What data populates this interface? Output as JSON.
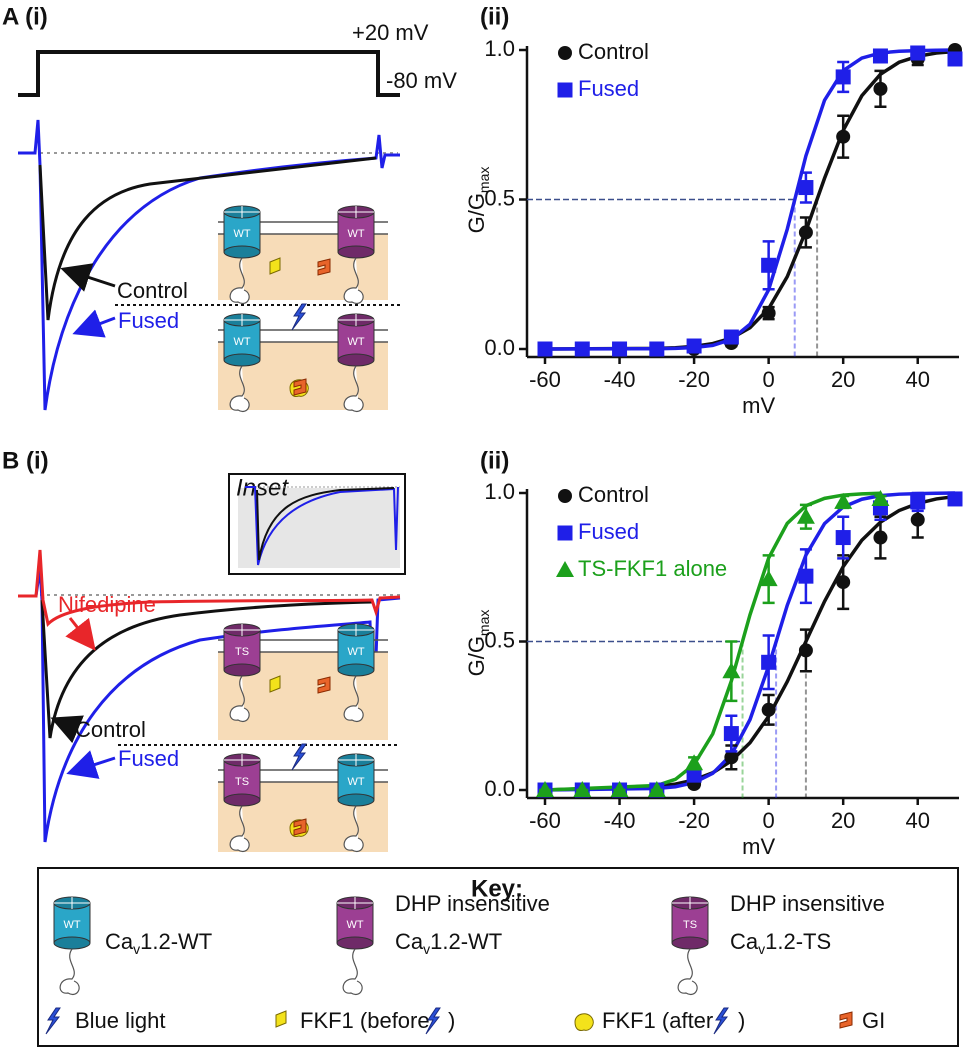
{
  "panel_labels": {
    "a_i": "A (i)",
    "a_ii": "(ii)",
    "b_i": "B (i)",
    "b_ii": "(ii)"
  },
  "voltage_protocol": {
    "high": "+20 mV",
    "low": "-80 mV"
  },
  "traces_a": {
    "control": "Control",
    "fused": "Fused"
  },
  "traces_b": {
    "nifedipine": "Nifedipine",
    "control": "Control",
    "fused": "Fused",
    "inset": "Inset"
  },
  "channel_labels": {
    "wt": "WT",
    "ts": "TS"
  },
  "chart_data": [
    {
      "type": "line",
      "ylabel": "G/G",
      "ylabel_sub": "max",
      "xlabel": "mV",
      "xlim": [
        -60,
        50
      ],
      "ylim": [
        0,
        1
      ],
      "xticks": [
        -60,
        -40,
        -20,
        0,
        20,
        40
      ],
      "yticks": [
        {
          "value": 0,
          "label": "0.0"
        },
        {
          "value": 0.5,
          "label": "0.5"
        },
        {
          "value": 1,
          "label": "1.0"
        }
      ],
      "legend": "upper left",
      "reference_y": 0.5,
      "series": [
        {
          "name": "Control",
          "color": "#111111",
          "marker": "circle",
          "x": [
            -60,
            -50,
            -40,
            -30,
            -20,
            -10,
            0,
            10,
            20,
            30,
            40,
            50
          ],
          "values": [
            0,
            0,
            0,
            0,
            0,
            0.02,
            0.12,
            0.39,
            0.71,
            0.87,
            0.97,
            1.0
          ],
          "errors": [
            0,
            0,
            0,
            0,
            0,
            0.01,
            0.02,
            0.05,
            0.07,
            0.06,
            0.02,
            0.01
          ],
          "v_half": 13,
          "fit_x": [
            -60,
            -30,
            -25,
            -20,
            -15,
            -10,
            -5,
            0,
            5,
            10,
            15,
            20,
            25,
            30,
            35,
            40,
            45,
            50
          ],
          "fit_values": [
            0,
            0.002,
            0.004,
            0.009,
            0.018,
            0.036,
            0.071,
            0.135,
            0.242,
            0.395,
            0.571,
            0.731,
            0.847,
            0.919,
            0.959,
            0.979,
            0.99,
            0.995
          ]
        },
        {
          "name": "Fused",
          "color": "#1f1fe8",
          "marker": "square",
          "x": [
            -60,
            -50,
            -40,
            -30,
            -20,
            -10,
            0,
            10,
            20,
            30,
            40,
            50
          ],
          "values": [
            0,
            0,
            0,
            0,
            0.01,
            0.04,
            0.28,
            0.54,
            0.91,
            0.98,
            0.99,
            0.97
          ],
          "errors": [
            0,
            0,
            0,
            0,
            0,
            0.02,
            0.08,
            0.05,
            0.05,
            0.02,
            0.01,
            0.02
          ],
          "v_half": 7,
          "fit_x": [
            -60,
            -30,
            -25,
            -20,
            -15,
            -10,
            -5,
            0,
            5,
            10,
            15,
            20,
            25,
            30,
            35,
            40,
            45,
            50
          ],
          "fit_values": [
            0,
            0.001,
            0.002,
            0.005,
            0.012,
            0.032,
            0.083,
            0.198,
            0.401,
            0.646,
            0.832,
            0.931,
            0.973,
            0.99,
            0.996,
            0.998,
            0.999,
            1.0
          ]
        }
      ]
    },
    {
      "type": "line",
      "ylabel": "G/G",
      "ylabel_sub": "max",
      "xlabel": "mV",
      "xlim": [
        -60,
        50
      ],
      "ylim": [
        0,
        1
      ],
      "xticks": [
        -60,
        -40,
        -20,
        0,
        20,
        40
      ],
      "yticks": [
        {
          "value": 0,
          "label": "0.0"
        },
        {
          "value": 0.5,
          "label": "0.5"
        },
        {
          "value": 1,
          "label": "1.0"
        }
      ],
      "legend": "upper left",
      "reference_y": 0.5,
      "series": [
        {
          "name": "Control",
          "color": "#111111",
          "marker": "circle",
          "x": [
            -60,
            -50,
            -40,
            -30,
            -20,
            -10,
            0,
            10,
            20,
            30,
            40
          ],
          "values": [
            0,
            0,
            0,
            0,
            0.02,
            0.11,
            0.27,
            0.47,
            0.7,
            0.85,
            0.91
          ],
          "errors": [
            0,
            0,
            0,
            0,
            0.01,
            0.04,
            0.05,
            0.07,
            0.09,
            0.07,
            0.06
          ],
          "v_half": 10,
          "fit_x": [
            -60,
            -30,
            -25,
            -20,
            -15,
            -10,
            -5,
            0,
            5,
            10,
            15,
            20,
            25,
            30,
            35,
            40,
            45,
            50
          ],
          "fit_values": [
            0,
            0.012,
            0.02,
            0.034,
            0.058,
            0.098,
            0.159,
            0.248,
            0.365,
            0.5,
            0.635,
            0.752,
            0.841,
            0.902,
            0.941,
            0.965,
            0.98,
            0.988
          ]
        },
        {
          "name": "Fused",
          "color": "#1f1fe8",
          "marker": "square",
          "x": [
            -60,
            -50,
            -40,
            -30,
            -20,
            -10,
            0,
            10,
            20,
            30,
            40,
            50
          ],
          "values": [
            0,
            0,
            0,
            0,
            0.05,
            0.19,
            0.43,
            0.72,
            0.85,
            0.95,
            0.97,
            0.98
          ],
          "errors": [
            0,
            0,
            0,
            0,
            0.02,
            0.06,
            0.09,
            0.09,
            0.07,
            0.04,
            0.03,
            0.01
          ],
          "v_half": 2,
          "fit_x": [
            -60,
            -30,
            -25,
            -20,
            -15,
            -10,
            -5,
            0,
            5,
            10,
            15,
            20,
            25,
            30,
            35,
            40,
            45,
            50
          ],
          "fit_values": [
            0,
            0.005,
            0.011,
            0.025,
            0.056,
            0.119,
            0.237,
            0.417,
            0.622,
            0.791,
            0.897,
            0.953,
            0.979,
            0.991,
            0.996,
            0.998,
            0.999,
            1.0
          ]
        },
        {
          "name": "TS-FKF1 alone",
          "color": "#1ca01c",
          "marker": "triangle",
          "x": [
            -60,
            -50,
            -40,
            -30,
            -20,
            -10,
            0,
            10,
            20,
            30
          ],
          "values": [
            0,
            0,
            0,
            0,
            0.09,
            0.4,
            0.71,
            0.92,
            0.97,
            0.98
          ],
          "errors": [
            0,
            0,
            0,
            0,
            0.02,
            0.1,
            0.08,
            0.04,
            0.02,
            0.01
          ],
          "v_half": -7,
          "fit_x": [
            -60,
            -30,
            -25,
            -20,
            -15,
            -10,
            -5,
            0,
            5,
            10,
            15,
            20,
            25,
            30
          ],
          "fit_values": [
            0,
            0.015,
            0.036,
            0.086,
            0.189,
            0.367,
            0.59,
            0.781,
            0.898,
            0.957,
            0.982,
            0.993,
            0.997,
            0.999
          ]
        }
      ]
    }
  ],
  "key": {
    "title": "Key:",
    "wt": {
      "sym": "Ca",
      "sub": "v",
      "rest": "1.2-WT"
    },
    "dhp_wt": {
      "line1": "DHP insensitive",
      "sym": "Ca",
      "sub": "v",
      "rest": "1.2-WT"
    },
    "dhp_ts": {
      "line1": "DHP insensitive",
      "sym": "Ca",
      "sub": "v",
      "rest": "1.2-TS"
    },
    "blue_light": "Blue light",
    "fkf1_before": [
      "FKF1 (before",
      ")"
    ],
    "fkf1_after": [
      "FKF1 (after",
      ")"
    ],
    "gi": "GI"
  }
}
